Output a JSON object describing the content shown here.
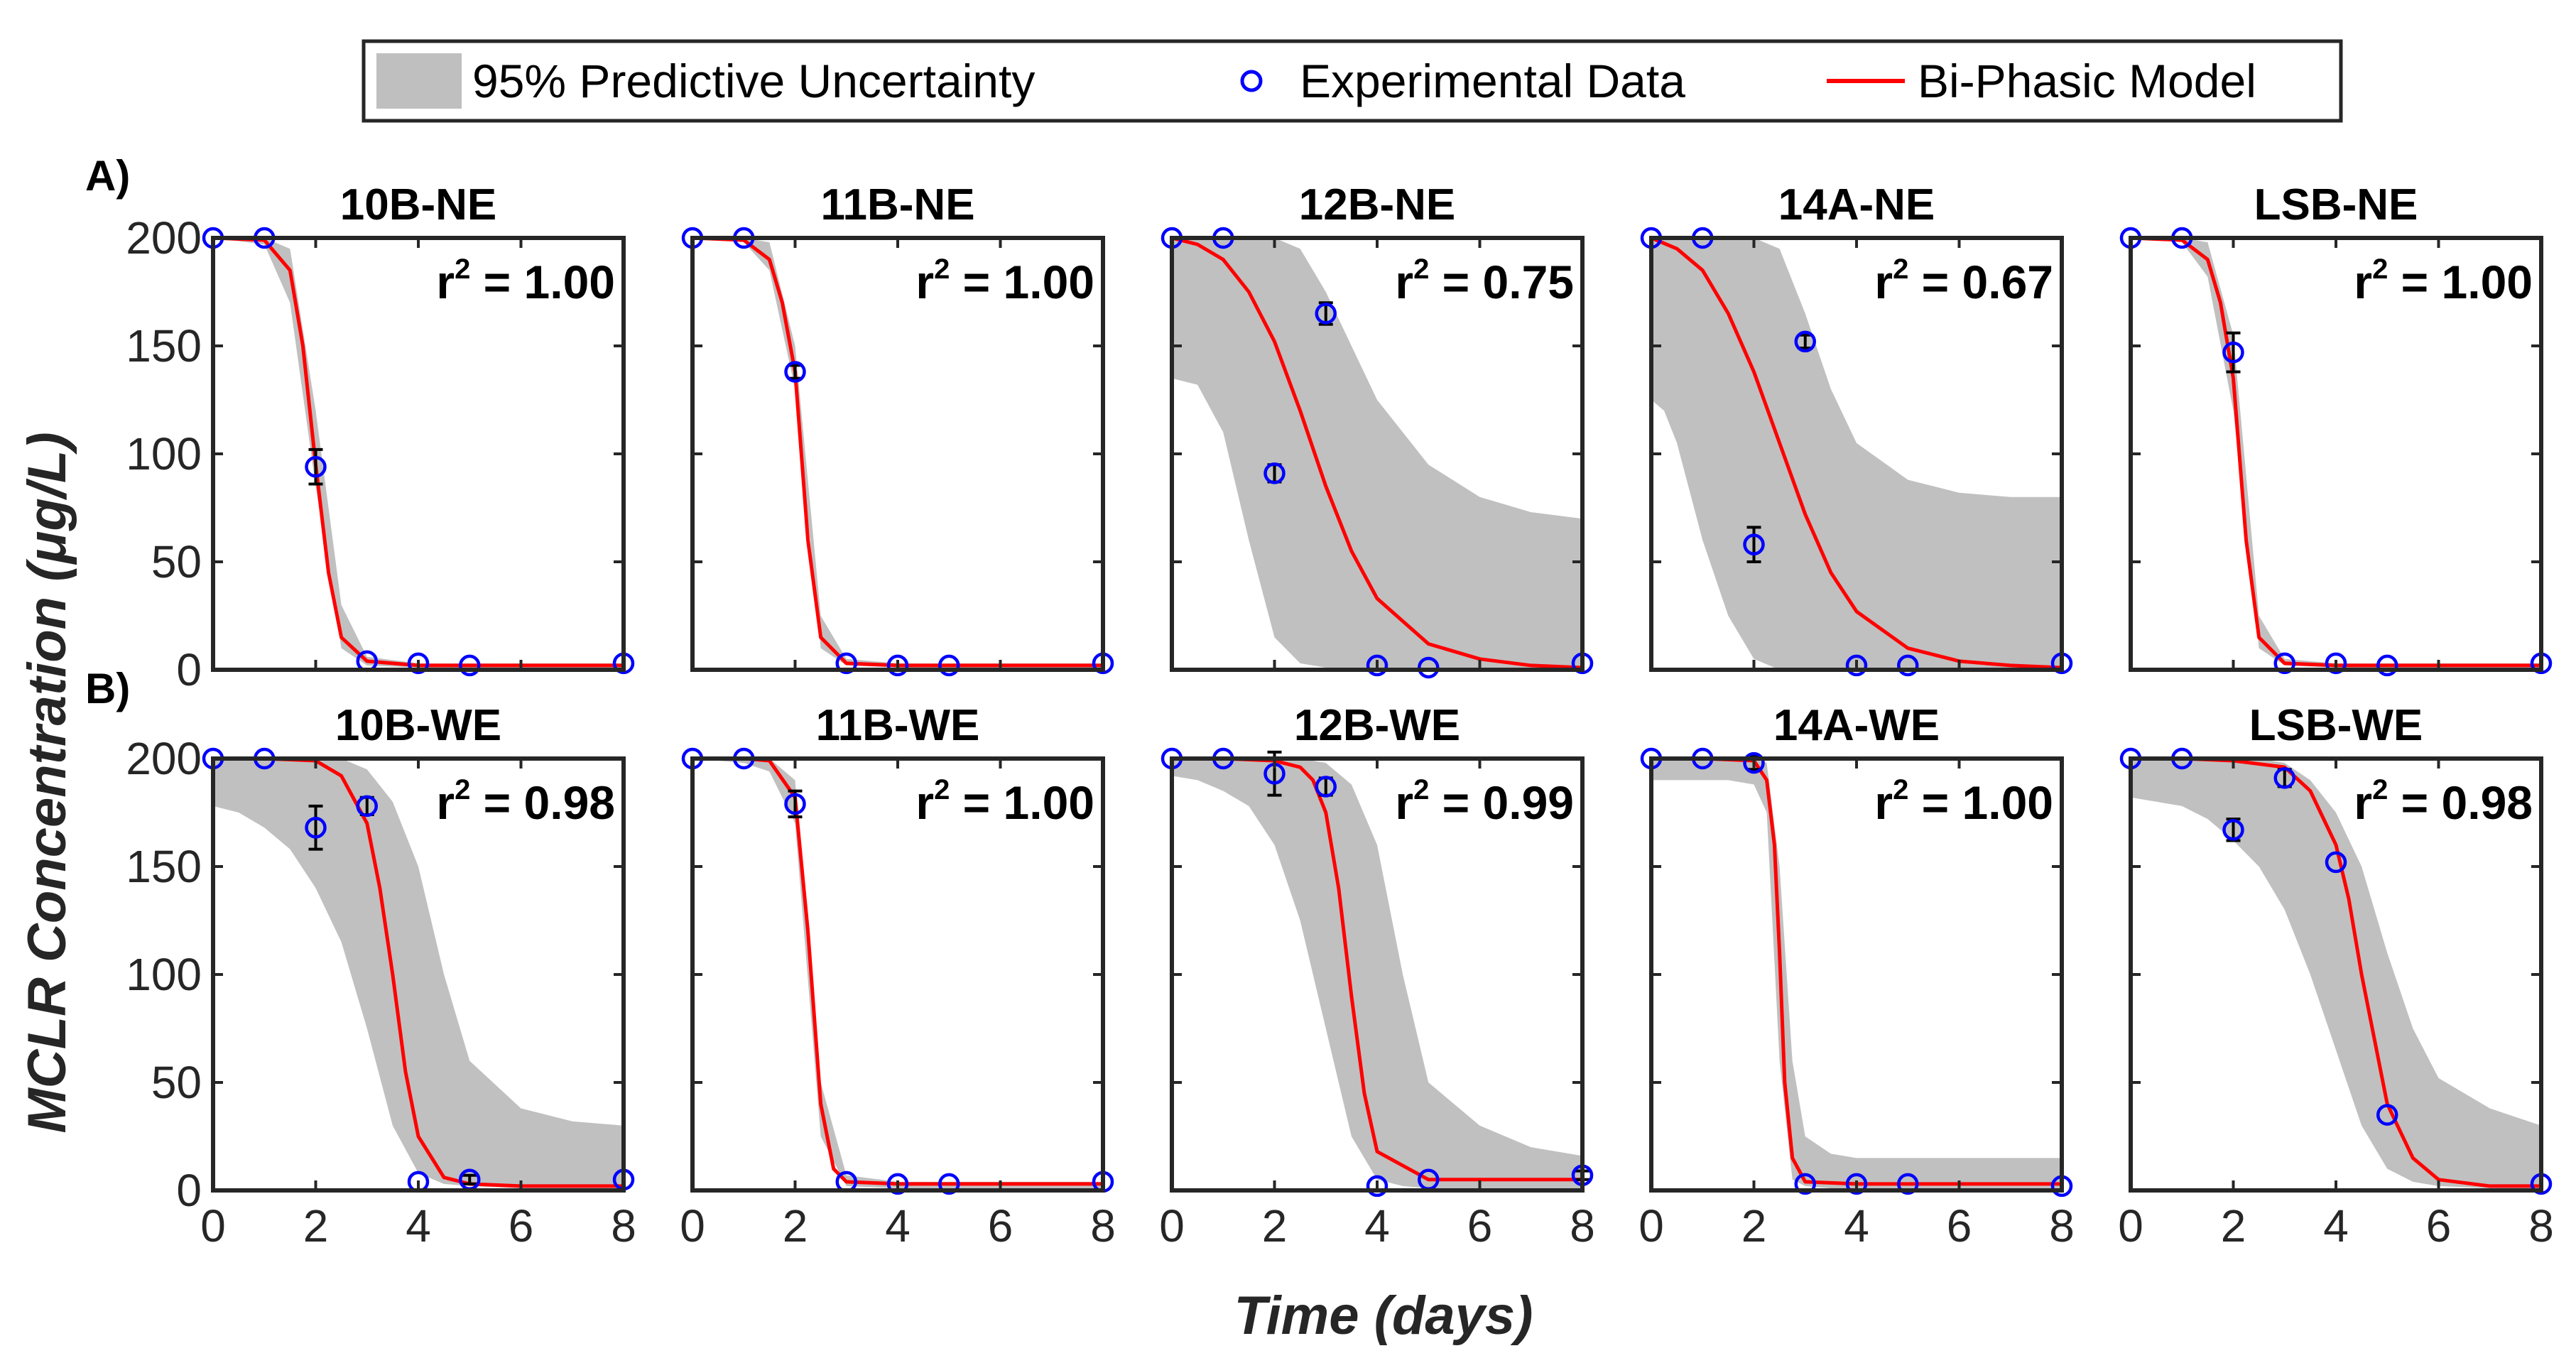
{
  "figure": {
    "xlabel": "Time (days)",
    "ylabel": "MCLR Concentration (μg/L)",
    "row_labels": [
      "A)",
      "B)"
    ],
    "legend": {
      "items": [
        {
          "label": "95% Predictive Uncertainty",
          "kind": "band",
          "color": "#bfbfbf"
        },
        {
          "label": "Experimental Data",
          "kind": "marker",
          "color": "#0000ff"
        },
        {
          "label": "Bi-Phasic Model",
          "kind": "line",
          "color": "#ff0000"
        }
      ]
    },
    "colors": {
      "band": "#c0c0c0",
      "marker": "#0000ff",
      "model": "#ff0000",
      "errorbar": "#000000"
    }
  },
  "chart_data": [
    {
      "type": "line",
      "title": "10B-NE",
      "r2_prefix": "r",
      "r2_exp": "2",
      "r2_value": " = 1.00",
      "xlim": [
        0,
        8
      ],
      "ylim": [
        0,
        200
      ],
      "xticks": [
        "0",
        "2",
        "4",
        "6",
        "8"
      ],
      "yticks": [
        "0",
        "50",
        "100",
        "150",
        "200"
      ],
      "model": {
        "t": [
          0,
          1,
          1.5,
          1.75,
          2,
          2.25,
          2.5,
          3,
          4,
          5,
          6,
          8
        ],
        "y": [
          200,
          199,
          185,
          150,
          95,
          45,
          15,
          4,
          2,
          2,
          2,
          2
        ]
      },
      "band": {
        "t": [
          0,
          1,
          1.5,
          2,
          2.5,
          3,
          4,
          8
        ],
        "lower": [
          200,
          197,
          170,
          85,
          10,
          2,
          1,
          1
        ],
        "upper": [
          200,
          200,
          195,
          120,
          30,
          6,
          3,
          3
        ]
      },
      "data": {
        "t": [
          0,
          1,
          2,
          3,
          4,
          5,
          8
        ],
        "y": [
          200,
          200,
          94,
          4,
          3,
          2,
          3
        ],
        "err": [
          0,
          0,
          8,
          0,
          0,
          0,
          0
        ]
      }
    },
    {
      "type": "line",
      "title": "11B-NE",
      "r2_prefix": "r",
      "r2_exp": "2",
      "r2_value": " = 1.00",
      "xlim": [
        0,
        8
      ],
      "ylim": [
        0,
        200
      ],
      "xticks": [
        "0",
        "2",
        "4",
        "6",
        "8"
      ],
      "yticks": [
        "0",
        "50",
        "100",
        "150",
        "200"
      ],
      "model": {
        "t": [
          0,
          1,
          1.5,
          1.75,
          2,
          2.25,
          2.5,
          3,
          4,
          5,
          6,
          8
        ],
        "y": [
          200,
          199,
          190,
          170,
          138,
          60,
          15,
          3,
          2,
          2,
          2,
          2
        ]
      },
      "band": {
        "t": [
          0,
          1,
          1.5,
          2,
          2.5,
          3,
          4,
          8
        ],
        "lower": [
          200,
          198,
          185,
          130,
          10,
          2,
          1,
          1
        ],
        "upper": [
          200,
          200,
          198,
          150,
          25,
          5,
          3,
          3
        ]
      },
      "data": {
        "t": [
          0,
          1,
          2,
          3,
          4,
          5,
          8
        ],
        "y": [
          200,
          200,
          138,
          3,
          2,
          2,
          3
        ],
        "err": [
          0,
          0,
          3,
          0,
          0,
          0,
          0
        ]
      }
    },
    {
      "type": "line",
      "title": "12B-NE",
      "r2_prefix": "r",
      "r2_exp": "2",
      "r2_value": " = 0.75",
      "xlim": [
        0,
        8
      ],
      "ylim": [
        0,
        200
      ],
      "xticks": [
        "0",
        "2",
        "4",
        "6",
        "8"
      ],
      "yticks": [
        "0",
        "50",
        "100",
        "150",
        "200"
      ],
      "model": {
        "t": [
          0,
          0.5,
          1,
          1.5,
          2,
          2.5,
          3,
          3.5,
          4,
          5,
          6,
          7,
          8
        ],
        "y": [
          200,
          197,
          190,
          175,
          152,
          120,
          85,
          55,
          33,
          12,
          5,
          2,
          1
        ]
      },
      "band": {
        "t": [
          0,
          0.5,
          1,
          1.5,
          2,
          2.5,
          3,
          3.5,
          4,
          5,
          6,
          7,
          8
        ],
        "lower": [
          135,
          132,
          110,
          60,
          15,
          3,
          1,
          0,
          0,
          0,
          0,
          0,
          0
        ],
        "upper": [
          200,
          200,
          200,
          200,
          200,
          195,
          175,
          150,
          125,
          95,
          80,
          73,
          70
        ]
      },
      "data": {
        "t": [
          0,
          1,
          2,
          3,
          4,
          5,
          8
        ],
        "y": [
          200,
          200,
          91,
          165,
          2,
          1,
          3
        ],
        "err": [
          0,
          0,
          4,
          5,
          0,
          0,
          0
        ]
      }
    },
    {
      "type": "line",
      "title": "14A-NE",
      "r2_prefix": "r",
      "r2_exp": "2",
      "r2_value": " = 0.67",
      "xlim": [
        0,
        8
      ],
      "ylim": [
        0,
        200
      ],
      "xticks": [
        "0",
        "2",
        "4",
        "6",
        "8"
      ],
      "yticks": [
        "0",
        "50",
        "100",
        "150",
        "200"
      ],
      "model": {
        "t": [
          0,
          0.5,
          1,
          1.5,
          2,
          2.5,
          3,
          3.5,
          4,
          5,
          6,
          7,
          8
        ],
        "y": [
          200,
          195,
          185,
          165,
          138,
          105,
          72,
          45,
          27,
          10,
          4,
          2,
          1
        ]
      },
      "band": {
        "t": [
          0,
          0.25,
          0.5,
          1,
          1.5,
          2,
          2.5,
          3,
          3.5,
          4,
          5,
          6,
          7,
          8
        ],
        "lower": [
          125,
          120,
          105,
          60,
          25,
          5,
          0,
          0,
          0,
          0,
          0,
          0,
          0,
          0
        ],
        "upper": [
          200,
          200,
          200,
          200,
          200,
          200,
          195,
          165,
          130,
          105,
          88,
          82,
          80,
          80
        ]
      },
      "data": {
        "t": [
          0,
          1,
          2,
          3,
          4,
          5,
          8
        ],
        "y": [
          200,
          200,
          58,
          152,
          2,
          2,
          3
        ],
        "err": [
          0,
          0,
          8,
          3,
          0,
          0,
          0
        ]
      }
    },
    {
      "type": "line",
      "title": "LSB-NE",
      "r2_prefix": "r",
      "r2_exp": "2",
      "r2_value": " = 1.00",
      "xlim": [
        0,
        8
      ],
      "ylim": [
        0,
        200
      ],
      "xticks": [
        "0",
        "2",
        "4",
        "6",
        "8"
      ],
      "yticks": [
        "0",
        "50",
        "100",
        "150",
        "200"
      ],
      "model": {
        "t": [
          0,
          1,
          1.5,
          1.75,
          2,
          2.25,
          2.5,
          3,
          4,
          5,
          6,
          8
        ],
        "y": [
          200,
          199,
          190,
          170,
          135,
          60,
          15,
          3,
          2,
          2,
          2,
          2
        ]
      },
      "band": {
        "t": [
          0,
          1,
          1.5,
          2,
          2.5,
          3,
          4,
          8
        ],
        "lower": [
          200,
          198,
          182,
          120,
          10,
          2,
          1,
          1
        ],
        "upper": [
          200,
          200,
          198,
          155,
          25,
          5,
          3,
          3
        ]
      },
      "data": {
        "t": [
          0,
          1,
          2,
          3,
          4,
          5,
          8
        ],
        "y": [
          200,
          200,
          147,
          3,
          3,
          2,
          3
        ],
        "err": [
          0,
          0,
          9,
          0,
          0,
          0,
          0
        ]
      }
    },
    {
      "type": "line",
      "title": "10B-WE",
      "r2_prefix": "r",
      "r2_exp": "2",
      "r2_value": " = 0.98",
      "xlim": [
        0,
        8
      ],
      "ylim": [
        0,
        200
      ],
      "xticks": [
        "0",
        "2",
        "4",
        "6",
        "8"
      ],
      "yticks": [
        "0",
        "50",
        "100",
        "150",
        "200"
      ],
      "model": {
        "t": [
          0,
          1,
          2,
          2.5,
          3,
          3.25,
          3.5,
          3.75,
          4,
          4.5,
          5,
          6,
          8
        ],
        "y": [
          200,
          200,
          199,
          192,
          170,
          140,
          100,
          55,
          25,
          6,
          3,
          2,
          2
        ]
      },
      "band": {
        "t": [
          0,
          0.5,
          1,
          1.5,
          2,
          2.5,
          3,
          3.5,
          4,
          4.5,
          5,
          6,
          7,
          8
        ],
        "lower": [
          178,
          175,
          168,
          158,
          140,
          115,
          75,
          30,
          8,
          3,
          2,
          1,
          1,
          1
        ],
        "upper": [
          200,
          200,
          200,
          200,
          200,
          200,
          195,
          180,
          150,
          100,
          60,
          38,
          32,
          30
        ]
      },
      "data": {
        "t": [
          0,
          1,
          2,
          3,
          4,
          5,
          8
        ],
        "y": [
          200,
          200,
          168,
          178,
          4,
          5,
          5
        ],
        "err": [
          0,
          0,
          10,
          4,
          0,
          2,
          0
        ]
      }
    },
    {
      "type": "line",
      "title": "11B-WE",
      "r2_prefix": "r",
      "r2_exp": "2",
      "r2_value": " = 1.00",
      "xlim": [
        0,
        8
      ],
      "ylim": [
        0,
        200
      ],
      "xticks": [
        "0",
        "2",
        "4",
        "6",
        "8"
      ],
      "yticks": [
        "0",
        "50",
        "100",
        "150",
        "200"
      ],
      "model": {
        "t": [
          0,
          1,
          1.5,
          2,
          2.25,
          2.5,
          2.75,
          3,
          4,
          5,
          6,
          8
        ],
        "y": [
          200,
          200,
          199,
          182,
          120,
          40,
          10,
          4,
          3,
          3,
          3,
          3
        ]
      },
      "band": {
        "t": [
          0,
          1,
          1.5,
          2,
          2.5,
          3,
          4,
          8
        ],
        "lower": [
          200,
          198,
          194,
          170,
          25,
          2,
          1,
          1
        ],
        "upper": [
          200,
          200,
          200,
          190,
          50,
          7,
          4,
          4
        ]
      },
      "data": {
        "t": [
          0,
          1,
          2,
          3,
          4,
          5,
          8
        ],
        "y": [
          200,
          200,
          179,
          4,
          3,
          3,
          4
        ],
        "err": [
          0,
          0,
          6,
          0,
          0,
          0,
          0
        ]
      }
    },
    {
      "type": "line",
      "title": "12B-WE",
      "r2_prefix": "r",
      "r2_exp": "2",
      "r2_value": " = 0.99",
      "xlim": [
        0,
        8
      ],
      "ylim": [
        0,
        200
      ],
      "xticks": [
        "0",
        "2",
        "4",
        "6",
        "8"
      ],
      "yticks": [
        "0",
        "50",
        "100",
        "150",
        "200"
      ],
      "model": {
        "t": [
          0,
          1,
          2,
          2.5,
          2.75,
          3,
          3.25,
          3.5,
          3.75,
          4,
          5,
          6,
          8
        ],
        "y": [
          200,
          200,
          199,
          196,
          190,
          175,
          140,
          90,
          45,
          18,
          5,
          5,
          5
        ]
      },
      "band": {
        "t": [
          0,
          0.5,
          1,
          1.5,
          2,
          2.5,
          3,
          3.5,
          4,
          4.5,
          5,
          6,
          7,
          8
        ],
        "lower": [
          192,
          190,
          185,
          178,
          160,
          125,
          75,
          25,
          5,
          2,
          1,
          1,
          1,
          1
        ],
        "upper": [
          200,
          200,
          200,
          200,
          200,
          200,
          198,
          188,
          160,
          100,
          50,
          30,
          20,
          16
        ]
      },
      "data": {
        "t": [
          0,
          1,
          2,
          3,
          4,
          5,
          8
        ],
        "y": [
          200,
          200,
          193,
          187,
          2,
          5,
          7
        ],
        "err": [
          0,
          0,
          10,
          4,
          0,
          0,
          2
        ]
      }
    },
    {
      "type": "line",
      "title": "14A-WE",
      "r2_prefix": "r",
      "r2_exp": "2",
      "r2_value": " = 1.00",
      "xlim": [
        0,
        8
      ],
      "ylim": [
        0,
        200
      ],
      "xticks": [
        "0",
        "2",
        "4",
        "6",
        "8"
      ],
      "yticks": [
        "0",
        "50",
        "100",
        "150",
        "200"
      ],
      "model": {
        "t": [
          0,
          1,
          2,
          2.25,
          2.4,
          2.5,
          2.6,
          2.75,
          3,
          4,
          5,
          6,
          8
        ],
        "y": [
          200,
          200,
          199,
          190,
          160,
          110,
          50,
          15,
          4,
          3,
          3,
          3,
          3
        ]
      },
      "band": {
        "t": [
          0,
          0.5,
          1,
          1.5,
          2,
          2.25,
          2.5,
          2.75,
          3,
          3.5,
          4,
          5,
          8
        ],
        "lower": [
          190,
          190,
          190,
          190,
          188,
          175,
          60,
          5,
          2,
          1,
          1,
          1,
          1
        ],
        "upper": [
          200,
          200,
          200,
          200,
          200,
          198,
          150,
          60,
          25,
          17,
          15,
          15,
          15
        ]
      },
      "data": {
        "t": [
          0,
          1,
          2,
          3,
          4,
          5,
          8
        ],
        "y": [
          200,
          200,
          198,
          3,
          3,
          3,
          2
        ],
        "err": [
          0,
          0,
          3,
          0,
          0,
          0,
          0
        ]
      }
    },
    {
      "type": "line",
      "title": "LSB-WE",
      "r2_prefix": "r",
      "r2_exp": "2",
      "r2_value": " = 0.98",
      "xlim": [
        0,
        8
      ],
      "ylim": [
        0,
        200
      ],
      "xticks": [
        "0",
        "2",
        "4",
        "6",
        "8"
      ],
      "yticks": [
        "0",
        "50",
        "100",
        "150",
        "200"
      ],
      "model": {
        "t": [
          0,
          1,
          2,
          3,
          3.5,
          4,
          4.25,
          4.5,
          4.75,
          5,
          5.5,
          6,
          7,
          8
        ],
        "y": [
          200,
          200,
          199,
          196,
          185,
          160,
          135,
          100,
          70,
          40,
          15,
          5,
          2,
          2
        ]
      },
      "band": {
        "t": [
          0,
          0.5,
          1,
          1.5,
          2,
          2.5,
          3,
          3.5,
          4,
          4.5,
          5,
          5.5,
          6,
          7,
          8
        ],
        "lower": [
          182,
          180,
          178,
          172,
          162,
          150,
          130,
          100,
          65,
          30,
          10,
          4,
          2,
          1,
          1
        ],
        "upper": [
          200,
          200,
          200,
          200,
          200,
          200,
          198,
          190,
          175,
          150,
          110,
          75,
          52,
          38,
          30
        ]
      },
      "data": {
        "t": [
          0,
          1,
          2,
          3,
          4,
          5,
          8
        ],
        "y": [
          200,
          200,
          167,
          191,
          152,
          35,
          3
        ],
        "err": [
          0,
          0,
          5,
          4,
          0,
          0,
          0
        ]
      }
    }
  ]
}
